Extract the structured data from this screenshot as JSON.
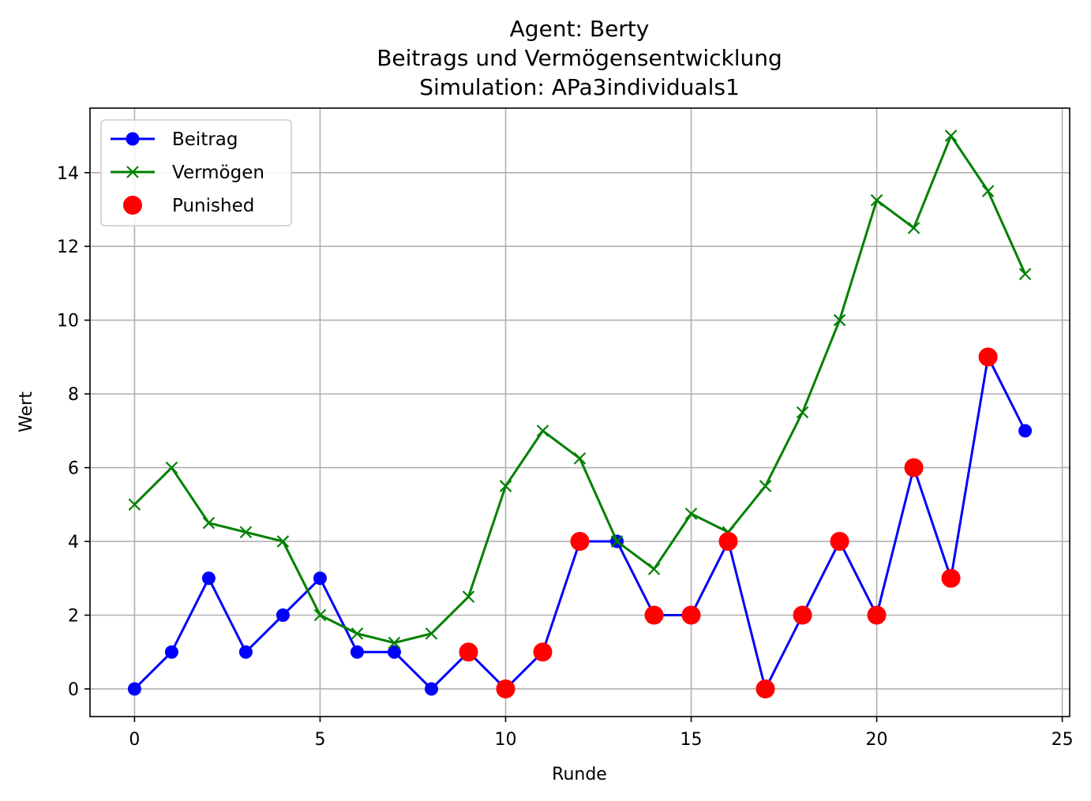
{
  "chart_data": {
    "type": "line",
    "title": [
      "Agent: Berty",
      "Beitrags und Vermögensentwicklung",
      "Simulation: APa3individuals1"
    ],
    "xlabel": "Runde",
    "ylabel": "Wert",
    "xlim": [
      -1.2,
      25.2
    ],
    "ylim": [
      -0.75,
      15.75
    ],
    "xticks": [
      0,
      5,
      10,
      15,
      20,
      25
    ],
    "yticks": [
      0,
      2,
      4,
      6,
      8,
      10,
      12,
      14
    ],
    "grid": true,
    "legend_position": "top-left",
    "x": [
      0,
      1,
      2,
      3,
      4,
      5,
      6,
      7,
      8,
      9,
      10,
      11,
      12,
      13,
      14,
      15,
      16,
      17,
      18,
      19,
      20,
      21,
      22,
      23,
      24
    ],
    "series": [
      {
        "name": "Beitrag",
        "kind": "line",
        "marker": "circle",
        "color": "#0000ff",
        "values": [
          0,
          1,
          3,
          1,
          2,
          3,
          1,
          1,
          0,
          1,
          0,
          1,
          4,
          4,
          2,
          2,
          4,
          0,
          2,
          4,
          2,
          6,
          3,
          9,
          7
        ]
      },
      {
        "name": "Vermögen",
        "kind": "line",
        "marker": "x",
        "color": "#008000",
        "values": [
          5,
          6,
          4.5,
          4.25,
          4,
          2,
          1.5,
          1.25,
          1.5,
          2.5,
          5.5,
          7,
          6.25,
          4,
          3.25,
          4.75,
          4.25,
          5.5,
          7.5,
          10,
          13.25,
          12.5,
          15,
          13.5,
          11.25
        ]
      },
      {
        "name": "Punished",
        "kind": "scatter",
        "marker": "circle",
        "color": "#ff0000",
        "x": [
          9,
          10,
          11,
          12,
          14,
          15,
          16,
          17,
          18,
          19,
          20,
          21,
          22,
          23
        ],
        "values": [
          1,
          0,
          1,
          4,
          2,
          2,
          4,
          0,
          2,
          4,
          2,
          6,
          3,
          9
        ]
      }
    ]
  }
}
